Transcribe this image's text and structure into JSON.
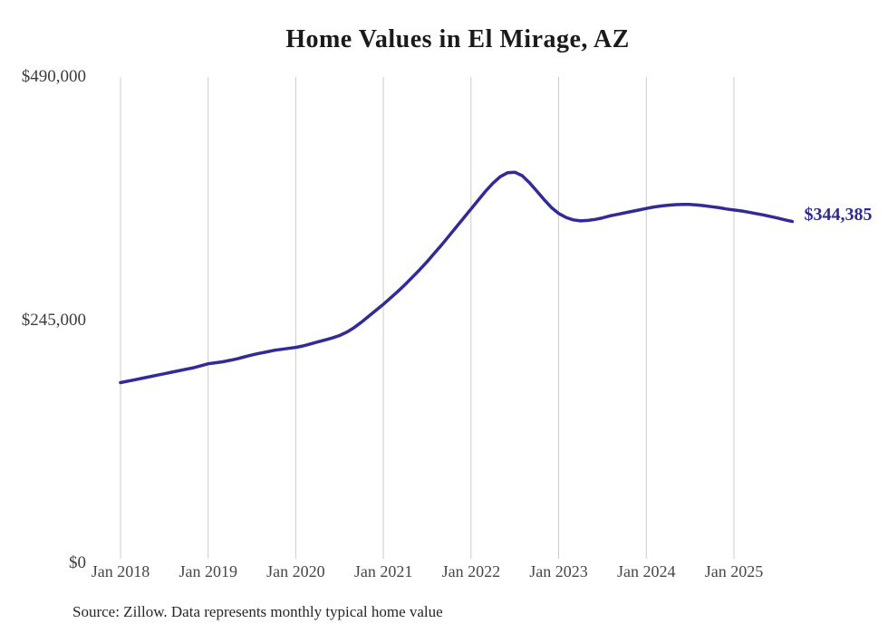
{
  "title": "Home Values in El Mirage, AZ",
  "source_note": "Source: Zillow. Data represents monthly typical home value",
  "end_label": "$344,385",
  "colors": {
    "line": "#322b96",
    "end_label": "#2e2a8f",
    "grid": "#cccccc",
    "title": "#1a1a1a",
    "axis_tick": "#474747",
    "background": "#ffffff"
  },
  "chart_data": {
    "type": "line",
    "title": "Home Values in El Mirage, AZ",
    "series_name": "Typical home value",
    "start_month": "2018-01",
    "end_month": "2025-09",
    "x_ticks": [
      "Jan 2018",
      "Jan 2019",
      "Jan 2020",
      "Jan 2021",
      "Jan 2022",
      "Jan 2023",
      "Jan 2024",
      "Jan 2025"
    ],
    "y_ticks": [
      {
        "label": "$0",
        "value": 0
      },
      {
        "label": "$245,000",
        "value": 245000
      },
      {
        "label": "$490,000",
        "value": 490000
      }
    ],
    "ylim": [
      0,
      490000
    ],
    "grid": "vertical-only",
    "legend": "none",
    "last_point_label": "$344,385",
    "values": [
      182000,
      183500,
      185000,
      186500,
      188000,
      189500,
      191000,
      192500,
      194000,
      195500,
      197000,
      199000,
      201000,
      202000,
      203000,
      204500,
      206000,
      208000,
      210000,
      211500,
      213000,
      214500,
      215500,
      216500,
      217500,
      219000,
      221000,
      223000,
      225000,
      227000,
      229500,
      233000,
      237500,
      243000,
      249000,
      255000,
      261000,
      267500,
      274000,
      281000,
      288500,
      296000,
      304000,
      312500,
      321000,
      330000,
      339000,
      348000,
      357000,
      366000,
      375000,
      383000,
      389500,
      393500,
      394000,
      390500,
      383500,
      375000,
      366500,
      358500,
      352500,
      348500,
      346000,
      345000,
      345500,
      346500,
      348000,
      350000,
      351500,
      353000,
      354500,
      356000,
      357500,
      359000,
      360000,
      360800,
      361300,
      361500,
      361500,
      361000,
      360200,
      359200,
      358200,
      357000,
      356000,
      355000,
      353800,
      352400,
      351000,
      349400,
      347800,
      346000,
      344385
    ]
  }
}
